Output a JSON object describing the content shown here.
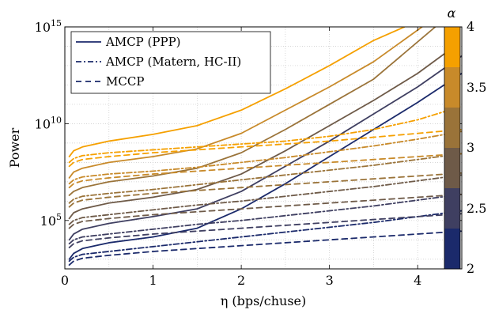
{
  "chart_data": {
    "type": "line",
    "xlabel": "η (bps/chuse)",
    "ylabel": "Power",
    "xlim": [
      0,
      4.5
    ],
    "ylim_log10": [
      2.5,
      15
    ],
    "y_scale": "log",
    "x_ticks": [
      "0",
      "1",
      "2",
      "3",
      "4"
    ],
    "y_ticks": [
      {
        "base": "10",
        "exp": "5"
      },
      {
        "base": "10",
        "exp": "10"
      },
      {
        "base": "10",
        "exp": "15"
      }
    ],
    "grid": "major-and-minor dotted",
    "legend": {
      "placement": "top-left",
      "entries": [
        {
          "label": "AMCP (PPP)",
          "style": "solid"
        },
        {
          "label": "AMCP (Matern, HC-II)",
          "style": "dashdot"
        },
        {
          "label": "MCCP",
          "style": "dashed"
        }
      ]
    },
    "colorbar": {
      "title": "α",
      "ticks": [
        "2",
        "2.5",
        "3",
        "3.5",
        "4"
      ],
      "bands": [
        "#1b2a6b",
        "#3f3f61",
        "#6e5a48",
        "#9a7339",
        "#c88a2a",
        "#f5a000"
      ]
    },
    "series": [
      {
        "style": "solid",
        "alpha": 4,
        "color": "#f5a000",
        "x": [
          0.05,
          0.1,
          0.2,
          0.5,
          1.0,
          1.5,
          2.0,
          2.5,
          3.0,
          3.5,
          3.85
        ],
        "y_log10": [
          8.3,
          8.6,
          8.8,
          9.1,
          9.45,
          9.9,
          10.7,
          11.8,
          13.0,
          14.3,
          15.0
        ]
      },
      {
        "style": "solid",
        "alpha": 3.5,
        "color": "#c88a2a",
        "x": [
          0.05,
          0.1,
          0.2,
          0.5,
          1.0,
          1.5,
          2.0,
          2.5,
          3.0,
          3.5,
          4.05
        ],
        "y_log10": [
          7.2,
          7.5,
          7.7,
          8.0,
          8.3,
          8.7,
          9.5,
          10.7,
          11.9,
          13.2,
          15.0
        ]
      },
      {
        "style": "solid",
        "alpha": 3,
        "color": "#9a7339",
        "x": [
          0.05,
          0.1,
          0.2,
          0.5,
          1.0,
          1.5,
          2.0,
          2.5,
          3.0,
          3.5,
          4.2
        ],
        "y_log10": [
          6.3,
          6.5,
          6.7,
          7.0,
          7.3,
          7.7,
          8.5,
          9.7,
          11.0,
          12.3,
          15.0
        ]
      },
      {
        "style": "solid",
        "alpha": 2.75,
        "color": "#6e5a48",
        "x": [
          0.05,
          0.1,
          0.2,
          0.5,
          1.0,
          1.5,
          2.0,
          2.5,
          3.0,
          3.5,
          4.0,
          4.45
        ],
        "y_log10": [
          5.1,
          5.4,
          5.6,
          5.9,
          6.2,
          6.6,
          7.4,
          8.6,
          9.9,
          11.2,
          12.6,
          14.1
        ]
      },
      {
        "style": "solid",
        "alpha": 2.5,
        "color": "#3f3f61",
        "x": [
          0.05,
          0.1,
          0.2,
          0.5,
          1.0,
          1.5,
          2.0,
          2.5,
          3.0,
          3.5,
          4.0,
          4.5
        ],
        "y_log10": [
          4.0,
          4.3,
          4.55,
          4.85,
          5.2,
          5.6,
          6.5,
          7.8,
          9.1,
          10.5,
          11.9,
          13.5
        ]
      },
      {
        "style": "solid",
        "alpha": 2.25,
        "color": "#1b2a6b",
        "x": [
          0.05,
          0.1,
          0.2,
          0.5,
          1.0,
          1.5,
          2.0,
          2.5,
          3.0,
          3.5,
          4.0,
          4.5
        ],
        "y_log10": [
          3.0,
          3.3,
          3.55,
          3.85,
          4.15,
          4.6,
          5.6,
          6.9,
          8.3,
          9.7,
          11.1,
          12.6
        ]
      },
      {
        "style": "dashdot",
        "alpha": 4,
        "color": "#f5a000",
        "x": [
          0.05,
          0.1,
          0.2,
          0.5,
          1.0,
          1.5,
          2.0,
          2.5,
          3.0,
          3.5,
          4.0,
          4.5
        ],
        "y_log10": [
          8.0,
          8.2,
          8.35,
          8.5,
          8.65,
          8.8,
          8.95,
          9.1,
          9.35,
          9.7,
          10.2,
          10.9
        ]
      },
      {
        "style": "dashdot",
        "alpha": 3.5,
        "color": "#c88a2a",
        "x": [
          0.05,
          0.1,
          0.2,
          0.5,
          1.0,
          1.5,
          2.0,
          2.5,
          3.0,
          3.5,
          4.0,
          4.5
        ],
        "y_log10": [
          6.9,
          7.1,
          7.25,
          7.4,
          7.55,
          7.75,
          8.0,
          8.25,
          8.55,
          8.85,
          9.2,
          9.6
        ]
      },
      {
        "style": "dashdot",
        "alpha": 3,
        "color": "#9a7339",
        "x": [
          0.05,
          0.1,
          0.2,
          0.5,
          1.0,
          1.5,
          2.0,
          2.5,
          3.0,
          3.5,
          4.0,
          4.5
        ],
        "y_log10": [
          5.9,
          6.1,
          6.25,
          6.4,
          6.6,
          6.85,
          7.1,
          7.35,
          7.6,
          7.85,
          8.15,
          8.45
        ]
      },
      {
        "style": "dashdot",
        "alpha": 2.75,
        "color": "#6e5a48",
        "x": [
          0.05,
          0.1,
          0.2,
          0.5,
          1.0,
          1.5,
          2.0,
          2.5,
          3.0,
          3.5,
          4.0,
          4.5
        ],
        "y_log10": [
          4.8,
          5.0,
          5.15,
          5.3,
          5.55,
          5.8,
          6.0,
          6.25,
          6.5,
          6.75,
          7.05,
          7.35
        ]
      },
      {
        "style": "dashdot",
        "alpha": 2.5,
        "color": "#3f3f61",
        "x": [
          0.05,
          0.1,
          0.2,
          0.5,
          1.0,
          1.5,
          2.0,
          2.5,
          3.0,
          3.5,
          4.0,
          4.5
        ],
        "y_log10": [
          3.8,
          4.0,
          4.15,
          4.3,
          4.55,
          4.8,
          5.0,
          5.25,
          5.5,
          5.75,
          6.05,
          6.35
        ]
      },
      {
        "style": "dashdot",
        "alpha": 2.25,
        "color": "#1b2a6b",
        "x": [
          0.05,
          0.1,
          0.2,
          0.5,
          1.0,
          1.5,
          2.0,
          2.5,
          3.0,
          3.5,
          4.0,
          4.5
        ],
        "y_log10": [
          2.9,
          3.1,
          3.25,
          3.4,
          3.65,
          3.9,
          4.15,
          4.4,
          4.65,
          4.9,
          5.2,
          5.5
        ]
      },
      {
        "style": "dashed",
        "alpha": 4,
        "color": "#f5a000",
        "x": [
          0.05,
          0.1,
          0.2,
          0.5,
          1.0,
          1.5,
          2.0,
          2.5,
          3.0,
          3.5,
          4.0,
          4.5
        ],
        "y_log10": [
          7.8,
          8.0,
          8.15,
          8.3,
          8.5,
          8.65,
          8.8,
          8.95,
          9.1,
          9.3,
          9.5,
          9.7
        ]
      },
      {
        "style": "dashed",
        "alpha": 3.5,
        "color": "#c88a2a",
        "x": [
          0.05,
          0.1,
          0.2,
          0.5,
          1.0,
          1.5,
          2.0,
          2.5,
          3.0,
          3.5,
          4.0,
          4.5
        ],
        "y_log10": [
          6.7,
          6.9,
          7.05,
          7.2,
          7.4,
          7.55,
          7.7,
          7.85,
          8.0,
          8.15,
          8.3,
          8.45
        ]
      },
      {
        "style": "dashed",
        "alpha": 3,
        "color": "#9a7339",
        "x": [
          0.05,
          0.1,
          0.2,
          0.5,
          1.0,
          1.5,
          2.0,
          2.5,
          3.0,
          3.5,
          4.0,
          4.5
        ],
        "y_log10": [
          5.7,
          5.9,
          6.05,
          6.2,
          6.4,
          6.55,
          6.7,
          6.85,
          7.0,
          7.15,
          7.3,
          7.45
        ]
      },
      {
        "style": "dashed",
        "alpha": 2.75,
        "color": "#6e5a48",
        "x": [
          0.05,
          0.1,
          0.2,
          0.5,
          1.0,
          1.5,
          2.0,
          2.5,
          3.0,
          3.5,
          4.0,
          4.5
        ],
        "y_log10": [
          4.6,
          4.8,
          4.95,
          5.1,
          5.3,
          5.45,
          5.6,
          5.75,
          5.9,
          6.05,
          6.2,
          6.35
        ]
      },
      {
        "style": "dashed",
        "alpha": 2.5,
        "color": "#3f3f61",
        "x": [
          0.05,
          0.1,
          0.2,
          0.5,
          1.0,
          1.5,
          2.0,
          2.5,
          3.0,
          3.5,
          4.0,
          4.5
        ],
        "y_log10": [
          3.6,
          3.8,
          3.95,
          4.1,
          4.3,
          4.45,
          4.6,
          4.75,
          4.9,
          5.05,
          5.2,
          5.35
        ]
      },
      {
        "style": "dashed",
        "alpha": 2.25,
        "color": "#1b2a6b",
        "x": [
          0.05,
          0.1,
          0.2,
          0.5,
          1.0,
          1.5,
          2.0,
          2.5,
          3.0,
          3.5,
          4.0,
          4.5
        ],
        "y_log10": [
          2.7,
          2.9,
          3.05,
          3.2,
          3.4,
          3.55,
          3.7,
          3.85,
          4.0,
          4.15,
          4.3,
          4.45
        ]
      }
    ]
  }
}
